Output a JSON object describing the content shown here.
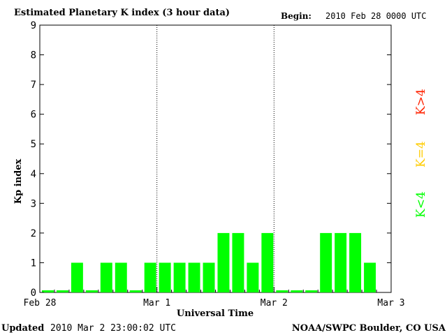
{
  "header": {
    "title": "Estimated Planetary K index (3 hour data)",
    "begin_label": "Begin:",
    "begin_value": "2010 Feb 28 0000 UTC"
  },
  "footer": {
    "updated_label": "Updated",
    "updated_value": "2010 Mar  2 23:00:02 UTC",
    "credit": "NOAA/SWPC Boulder, CO USA"
  },
  "legend": [
    {
      "label": "K>4",
      "color": "#ff2200"
    },
    {
      "label": "K=4",
      "color": "#ffcc00"
    },
    {
      "label": "K<4",
      "color": "#00ff00"
    }
  ],
  "chart_data": {
    "type": "bar",
    "title": "Estimated Planetary K index (3 hour data)",
    "xlabel": "Universal Time",
    "ylabel": "Kp index",
    "ylim": [
      0,
      9
    ],
    "yticks": [
      0,
      1,
      2,
      3,
      4,
      5,
      6,
      7,
      8,
      9
    ],
    "xticks": [
      "Feb 28",
      "Mar 1",
      "Mar 2",
      "Mar 3"
    ],
    "bar_interval_hours": 3,
    "bar_color": "#00ff00",
    "day_divider_style": "dotted",
    "values": [
      0,
      0,
      1,
      0,
      1,
      1,
      0,
      1,
      1,
      1,
      1,
      1,
      2,
      2,
      1,
      2,
      0,
      0,
      0,
      2,
      2,
      2,
      1
    ]
  }
}
